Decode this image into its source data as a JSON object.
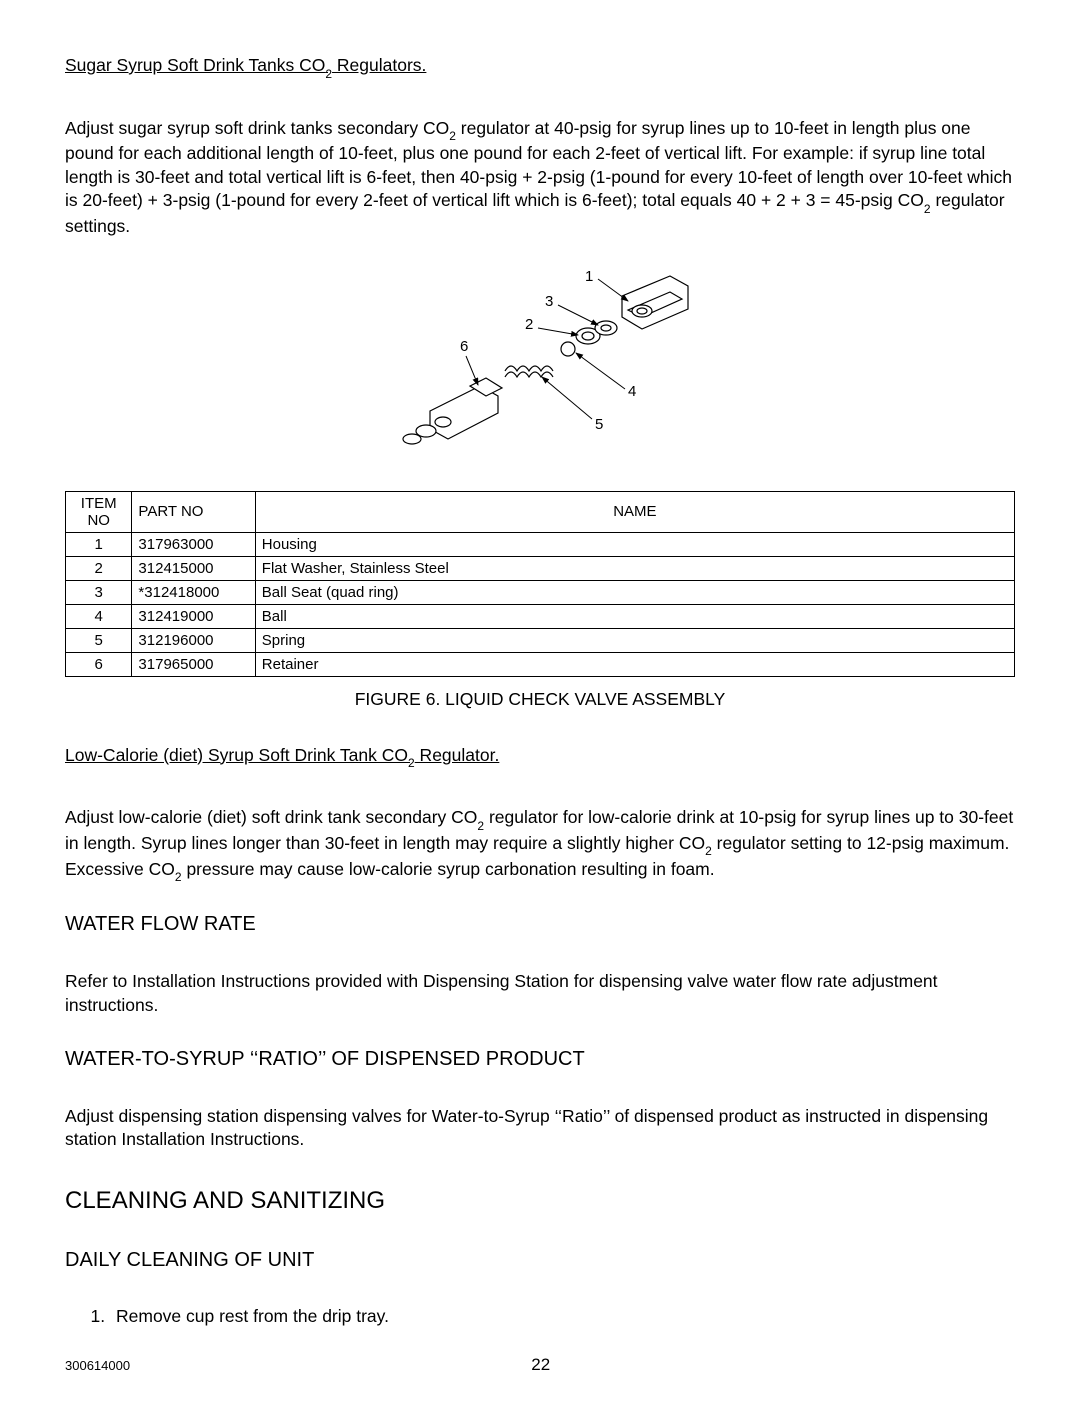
{
  "section1": {
    "title_pre": "Sugar Syrup Soft Drink Tanks CO",
    "title_sub": "2",
    "title_post": " Regulators.",
    "para_parts": [
      "Adjust sugar syrup soft drink tanks secondary CO",
      "2",
      " regulator at 40-psig for syrup lines up to 10-feet in length plus one pound for each additional length of 10-feet, plus one pound for each 2-feet of vertical lift. For example: if syrup line total length is 30-feet and total vertical lift is 6-feet, then 40-psig + 2-psig (1-pound for every 10-feet of length over 10-feet which is 20-feet) + 3-psig (1-pound for every 2-feet of vertical lift which is 6-feet); total equals 40 + 2 + 3 = 45-psig CO",
      "2",
      " regulator settings."
    ]
  },
  "diagram": {
    "labels": {
      "l1": "1",
      "l2": "2",
      "l3": "3",
      "l4": "4",
      "l5": "5",
      "l6": "6"
    }
  },
  "parts_table": {
    "headers": {
      "item": "ITEM NO",
      "part": "PART NO",
      "name": "NAME"
    },
    "rows": [
      {
        "item": "1",
        "part": "317963000",
        "name": "Housing"
      },
      {
        "item": "2",
        "part": "312415000",
        "name": "Flat Washer, Stainless Steel"
      },
      {
        "item": "3",
        "part": "*312418000",
        "name": "Ball Seat (quad ring)"
      },
      {
        "item": "4",
        "part": "312419000",
        "name": "Ball"
      },
      {
        "item": "5",
        "part": "312196000",
        "name": "Spring"
      },
      {
        "item": "6",
        "part": "317965000",
        "name": "Retainer"
      }
    ]
  },
  "figure_caption": "FIGURE 6. LIQUID CHECK VALVE ASSEMBLY",
  "section2": {
    "title_pre": "Low-Calorie (diet) Syrup Soft Drink Tank CO",
    "title_sub": "2",
    "title_mid": "     Regulator.",
    "para_parts": [
      "Adjust low-calorie (diet) soft drink tank secondary CO",
      "2",
      " regulator for low-calorie drink at 10-psig for syrup lines up to 30-feet in length. Syrup lines longer than 30-feet in length may require a slightly higher CO",
      "2",
      " regulator setting to 12-psig maximum. Excessive CO",
      "2",
      " pressure may cause low-calorie syrup carbonation resulting in foam."
    ]
  },
  "water_flow": {
    "heading": "WATER FLOW RATE",
    "para": "Refer to Installation Instructions provided with Dispensing Station for dispensing valve water flow rate adjustment instructions."
  },
  "water_syrup": {
    "heading": "WATER-TO-SYRUP ‘‘RATIO’’ OF DISPENSED PRODUCT",
    "para": "Adjust dispensing station dispensing valves for Water-to-Syrup ‘‘Ratio’’ of dispensed product as instructed in dispensing station Installation Instructions."
  },
  "cleaning": {
    "heading": "CLEANING AND SANITIZING",
    "sub_heading": "DAILY CLEANING OF UNIT",
    "step1": "Remove cup rest from the drip tray."
  },
  "footer": {
    "docnum": "300614000",
    "page": "22"
  }
}
